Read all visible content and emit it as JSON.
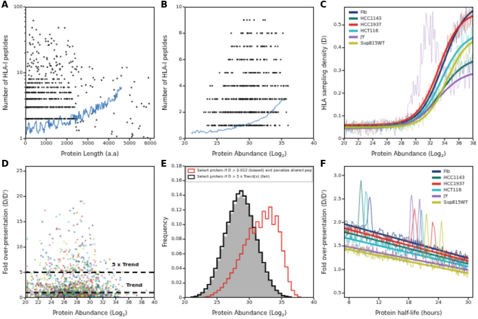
{
  "chart_data": [
    {
      "panel": "A",
      "type": "scatter",
      "xlabel": {
        "pre": "Protein Length (a.a)"
      },
      "ylabel": "Number of HLA-I peptides",
      "xlim": [
        0,
        6200
      ],
      "xticks": [
        0,
        1000,
        2000,
        3000,
        4000,
        5000,
        6000
      ],
      "yscale": "log",
      "ylim": [
        1,
        100
      ],
      "yticks": [
        1,
        10,
        100
      ],
      "yticklabels": [
        "1",
        "10",
        "100"
      ],
      "point_color": "#141414",
      "gen": {
        "seed": 11,
        "skew": 1.5,
        "rows": [
          {
            "y": 1,
            "n": 170,
            "xr": [
              20,
              2600
            ]
          },
          {
            "y": 2,
            "n": 130,
            "xr": [
              30,
              2500
            ]
          },
          {
            "y": 3,
            "n": 95,
            "xr": [
              40,
              2450
            ]
          },
          {
            "y": 4,
            "n": 70,
            "xr": [
              50,
              2350
            ]
          },
          {
            "y": 5,
            "n": 55,
            "xr": [
              60,
              2300
            ]
          },
          {
            "y": 6,
            "n": 40,
            "xr": [
              80,
              2250
            ]
          },
          {
            "y": 7,
            "n": 28,
            "xr": [
              100,
              2150
            ]
          },
          {
            "y": 8,
            "n": 20,
            "xr": [
              120,
              2050
            ]
          }
        ],
        "spread": {
          "n": 90,
          "xr": [
            100,
            2400
          ]
        },
        "wide": {
          "n": 60,
          "xr": [
            2400,
            6000
          ]
        },
        "outliers": [
          [
            380,
            62
          ],
          [
            520,
            45
          ],
          [
            700,
            38
          ],
          [
            980,
            30
          ],
          [
            1500,
            27
          ],
          [
            4600,
            9
          ],
          [
            5050,
            2
          ],
          [
            5800,
            3
          ]
        ]
      },
      "trend": {
        "color": "#2e6db4",
        "step": 25,
        "jitter_rel": 0.16,
        "anchors": [
          [
            20,
            1.3
          ],
          [
            150,
            1.6
          ],
          [
            300,
            1.2
          ],
          [
            450,
            1.9
          ],
          [
            600,
            1.3
          ],
          [
            750,
            1.7
          ],
          [
            900,
            1.3
          ],
          [
            1050,
            2.0
          ],
          [
            1200,
            1.5
          ],
          [
            1350,
            1.8
          ],
          [
            1500,
            1.4
          ],
          [
            1650,
            2.1
          ],
          [
            1800,
            1.6
          ],
          [
            1950,
            1.9
          ],
          [
            2100,
            1.7
          ],
          [
            2250,
            2.3
          ],
          [
            2400,
            1.9
          ],
          [
            2550,
            2.4
          ],
          [
            2700,
            2.1
          ],
          [
            2850,
            2.6
          ],
          [
            3000,
            2.3
          ],
          [
            3150,
            2.9
          ],
          [
            3300,
            2.6
          ],
          [
            3450,
            3.1
          ],
          [
            3600,
            2.9
          ],
          [
            3750,
            3.4
          ],
          [
            3900,
            3.1
          ],
          [
            4050,
            3.9
          ],
          [
            4200,
            3.5
          ],
          [
            4350,
            4.6
          ],
          [
            4500,
            5.4
          ],
          [
            4620,
            5.8
          ]
        ]
      }
    },
    {
      "panel": "B",
      "type": "scatter",
      "xlabel": {
        "pre": "Protein Abundance (Log",
        "sub": "2",
        "post": ")"
      },
      "ylabel": "Number of HLA-I peptides",
      "xlim": [
        20,
        40
      ],
      "xticks": [
        20,
        25,
        30,
        35,
        40
      ],
      "ylim": [
        0,
        10
      ],
      "yticks": [
        0,
        2,
        4,
        6,
        8,
        10
      ],
      "point_color": "#141414",
      "gen": {
        "seed": 23,
        "tri": true,
        "rows": [
          {
            "y": 0,
            "n": 80,
            "xr": [
              21.5,
              35.5
            ]
          },
          {
            "y": 1,
            "n": 120,
            "xr": [
              22,
              36.5
            ]
          },
          {
            "y": 2,
            "n": 110,
            "xr": [
              22.5,
              36.5
            ]
          },
          {
            "y": 3,
            "n": 90,
            "xr": [
              23,
              36.5
            ]
          },
          {
            "y": 4,
            "n": 70,
            "xr": [
              23.5,
              36.5
            ]
          },
          {
            "y": 5,
            "n": 45,
            "xr": [
              24.5,
              36
            ]
          },
          {
            "y": 6,
            "n": 38,
            "xr": [
              25,
              36
            ]
          },
          {
            "y": 7,
            "n": 26,
            "xr": [
              25.5,
              35.5
            ]
          },
          {
            "y": 8,
            "n": 20,
            "xr": [
              26,
              35.5
            ]
          },
          {
            "y": 9,
            "n": 7,
            "xr": [
              27,
              34
            ]
          }
        ]
      },
      "trend": {
        "color": "#2e6db4",
        "step": 0.15,
        "jitter_abs": 0.1,
        "anchors": [
          [
            21,
            0.45
          ],
          [
            22,
            0.55
          ],
          [
            23,
            0.5
          ],
          [
            24,
            0.55
          ],
          [
            25,
            0.6
          ],
          [
            26,
            0.65
          ],
          [
            27,
            0.75
          ],
          [
            28,
            0.9
          ],
          [
            29,
            1.0
          ],
          [
            30,
            1.15
          ],
          [
            31,
            1.3
          ],
          [
            32,
            1.55
          ],
          [
            32.5,
            1.7
          ],
          [
            33,
            1.9
          ],
          [
            33.5,
            2.1
          ],
          [
            34,
            2.35
          ],
          [
            34.5,
            2.6
          ],
          [
            35,
            2.85
          ],
          [
            35.5,
            3.05
          ]
        ]
      }
    },
    {
      "panel": "C",
      "type": "lines",
      "xlabel": {
        "pre": "Protein Abundance (Log",
        "sub": "2",
        "post": ")"
      },
      "ylabel": "HLA sampling density (D)",
      "xlim": [
        20,
        38
      ],
      "xticks": [
        20,
        22,
        24,
        26,
        28,
        30,
        32,
        34,
        36,
        38
      ],
      "ylim": [
        0,
        0.58
      ],
      "yticks": [
        0,
        0.1,
        0.2,
        0.3,
        0.4,
        0.5
      ],
      "yticklabels": [
        "0",
        "0.1",
        "0.2",
        "0.3",
        "0.4",
        "0.5"
      ],
      "legend": {
        "pos": "tl"
      },
      "series": [
        {
          "name": "Fib",
          "color": "#16356e",
          "base": 0.055,
          "max": 0.6,
          "mid": 33.8,
          "slope": 1.6,
          "noise": 0.05,
          "seed": 3
        },
        {
          "name": "HCC1143",
          "color": "#0e6f63",
          "base": 0.05,
          "max": 0.36,
          "mid": 33.5,
          "slope": 1.7,
          "noise": 0.05,
          "seed": 4
        },
        {
          "name": "HCC1937",
          "color": "#d92a23",
          "base": 0.06,
          "max": 0.56,
          "mid": 33.2,
          "slope": 1.5,
          "noise": 0.05,
          "seed": 5
        },
        {
          "name": "HCT116",
          "color": "#2ab5c3",
          "base": 0.05,
          "max": 0.47,
          "mid": 33.6,
          "slope": 1.6,
          "noise": 0.06,
          "seed": 6
        },
        {
          "name": "JY",
          "color": "#8f62b5",
          "base": 0.045,
          "max": 0.3,
          "mid": 33.0,
          "slope": 1.8,
          "noise": 0.09,
          "seed": 7,
          "bump": {
            "x": 31.6,
            "amp": 0.34,
            "sd": 1.3
          }
        },
        {
          "name": "Sup815WT",
          "color": "#b9bd26",
          "base": 0.05,
          "max": 0.46,
          "mid": 34.3,
          "slope": 1.5,
          "noise": 0.06,
          "seed": 8
        }
      ]
    },
    {
      "panel": "D",
      "type": "scatter-multi",
      "xlabel": {
        "pre": "Protein Abundance (Log",
        "sub": "2",
        "post": ")"
      },
      "ylabel": "Fold over-presentation (D/D')",
      "xlim": [
        20,
        40
      ],
      "xticks": [
        20,
        22,
        24,
        26,
        28,
        30,
        32,
        34,
        36,
        38,
        40
      ],
      "ylim": [
        0,
        26
      ],
      "yticks": [
        0,
        5,
        10,
        15,
        20,
        25
      ],
      "gen": {
        "seed": 42,
        "n": 1500,
        "xmean": 27.2,
        "xsd": 3.4,
        "ybulk": 1.7,
        "tail_frac": 0.13,
        "tail_scale": 4.5
      },
      "palette": [
        "#16356e",
        "#0e6f63",
        "#d92a23",
        "#2ab5c3",
        "#8f62b5",
        "#b9bd26",
        "#e07b2a",
        "#4aa84e"
      ],
      "hlines": [
        {
          "y": 5,
          "label": "5 x Trend",
          "lx": 33.4,
          "ly": 6.2
        },
        {
          "y": 1,
          "label": "Trend",
          "lx": 35.6,
          "ly": 2.2
        }
      ]
    },
    {
      "panel": "E",
      "type": "hist",
      "xlabel": {
        "pre": "Protein Abundance (Log",
        "sub": "2",
        "post": ")"
      },
      "ylabel": "Frequency",
      "xlim": [
        20,
        40
      ],
      "xticks": [
        20,
        25,
        30,
        35,
        40
      ],
      "ylim": [
        0,
        0.18
      ],
      "yticks": [
        0,
        0.02,
        0.04,
        0.06,
        0.08,
        0.1,
        0.12,
        0.14,
        0.16,
        0.18
      ],
      "yticklabels": [
        "0",
        "0.02",
        "0.04",
        "0.06",
        "0.08",
        "0.10",
        "0.12",
        "0.14",
        "0.16",
        "0.18"
      ],
      "bin_start": 20,
      "bin_width": 0.5,
      "filled": {
        "color": "#b4b4b4",
        "values": [
          0,
          0,
          0,
          0.001,
          0.003,
          0.006,
          0.01,
          0.016,
          0.025,
          0.037,
          0.051,
          0.067,
          0.084,
          0.1,
          0.115,
          0.128,
          0.137,
          0.14,
          0.136,
          0.126,
          0.111,
          0.094,
          0.077,
          0.061,
          0.046,
          0.033,
          0.023,
          0.015,
          0.009,
          0.005,
          0.003,
          0.001,
          0.001,
          0,
          0,
          0,
          0,
          0,
          0,
          0
        ]
      },
      "steps": [
        {
          "color": "#d92a23",
          "lw": 1.3,
          "label": "Select protein if D > 0.012 (biased) and penalize shared pep",
          "values": [
            0,
            0,
            0,
            0,
            0,
            0,
            0.001,
            0.002,
            0.004,
            0.007,
            0.01,
            0.014,
            0.02,
            0.026,
            0.034,
            0.04,
            0.052,
            0.06,
            0.072,
            0.08,
            0.095,
            0.088,
            0.104,
            0.096,
            0.118,
            0.108,
            0.124,
            0.1,
            0.112,
            0.09,
            0.064,
            0.042,
            0.022,
            0.01,
            0.004,
            0.001,
            0,
            0,
            0,
            0
          ]
        },
        {
          "color": "#000000",
          "lw": 1.8,
          "label": "Select protein if D > 5 x Trend(x) (fair)",
          "values": [
            0,
            0,
            0.001,
            0.002,
            0.004,
            0.007,
            0.012,
            0.018,
            0.028,
            0.04,
            0.054,
            0.07,
            0.088,
            0.103,
            0.118,
            0.132,
            0.142,
            0.146,
            0.139,
            0.128,
            0.112,
            0.096,
            0.079,
            0.062,
            0.048,
            0.035,
            0.024,
            0.016,
            0.01,
            0.006,
            0.003,
            0.002,
            0.001,
            0,
            0,
            0,
            0,
            0,
            0,
            0
          ]
        }
      ]
    },
    {
      "panel": "F",
      "type": "trends",
      "xlabel": {
        "pre": "Protein half-life (hours)"
      },
      "ylabel": "Fold over-presentation (D/D')",
      "xlim": [
        5,
        31
      ],
      "xticks": [
        6,
        12,
        18,
        24,
        30
      ],
      "ylim": [
        0.4,
        3.2
      ],
      "yticks": [
        0.5,
        1,
        1.5,
        2,
        2.5,
        3
      ],
      "yticklabels": [
        "0.5",
        "1.0",
        "1.5",
        "2.0",
        "2.5",
        "3.0"
      ],
      "legend": {
        "pos": "tr"
      },
      "series": [
        {
          "name": "Fib",
          "color": "#16356e",
          "trend": [
            [
              5,
              1.97
            ],
            [
              30,
              1.24
            ]
          ],
          "noise": 0.12,
          "seed": 31,
          "spikes": [
            {
              "x": 10.2,
              "y": 2.5
            }
          ]
        },
        {
          "name": "HCC1143",
          "color": "#0e6f63",
          "trend": [
            [
              5,
              1.8
            ],
            [
              30,
              1.12
            ]
          ],
          "noise": 0.12,
          "seed": 32,
          "spikes": [
            {
              "x": 8.4,
              "y": 2.95
            }
          ]
        },
        {
          "name": "HCC1937",
          "color": "#d92a23",
          "trend": [
            [
              5,
              1.88
            ],
            [
              30,
              1.18
            ]
          ],
          "noise": 0.12,
          "seed": 33,
          "spikes": [
            {
              "x": 19.2,
              "y": 2.4
            },
            {
              "x": 23,
              "y": 2.05
            }
          ]
        },
        {
          "name": "HCT116",
          "color": "#2ab5c3",
          "trend": [
            [
              5,
              1.68
            ],
            [
              30,
              1.06
            ]
          ],
          "noise": 0.12,
          "seed": 34,
          "spikes": [
            {
              "x": 9.4,
              "y": 2.75
            },
            {
              "x": 20.6,
              "y": 2.3
            }
          ]
        },
        {
          "name": "JY",
          "color": "#8f62b5",
          "trend": [
            [
              5,
              1.5
            ],
            [
              30,
              0.99
            ]
          ],
          "noise": 0.11,
          "seed": 35,
          "spikes": [
            {
              "x": 18.6,
              "y": 2.65
            },
            {
              "x": 20.2,
              "y": 2.5
            }
          ]
        },
        {
          "name": "Sup815WT",
          "color": "#b9bd26",
          "trend": [
            [
              5,
              1.44
            ],
            [
              30,
              0.92
            ]
          ],
          "noise": 0.11,
          "seed": 36,
          "spikes": [
            {
              "x": 21.6,
              "y": 2.2
            },
            {
              "x": 24.6,
              "y": 1.98
            }
          ]
        }
      ]
    }
  ]
}
